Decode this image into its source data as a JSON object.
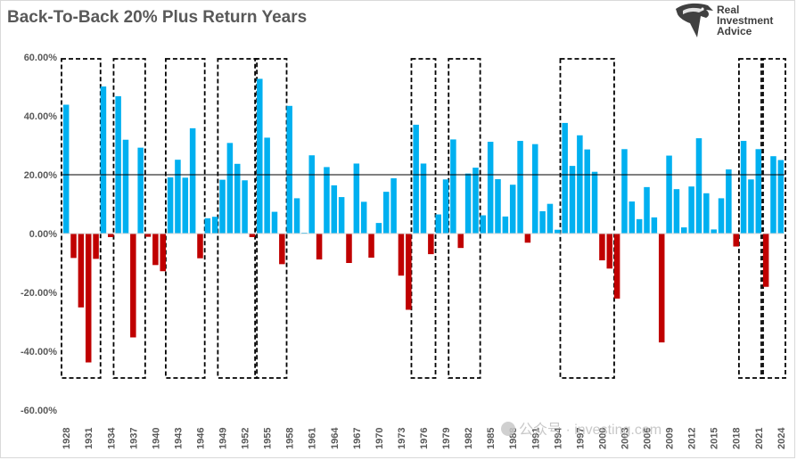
{
  "title": "Back-To-Back 20% Plus Return Years",
  "logo": {
    "line1": "Real",
    "line2": "Investment",
    "line3": "Advice",
    "icon": "eagle-head-icon"
  },
  "watermark": {
    "text": "公众号 · investing.com",
    "icon": "wechat-icon"
  },
  "colors": {
    "positive": "#00b0f0",
    "negative": "#c00000",
    "reference_line": "#000000",
    "highlight_box": "#000000"
  },
  "chart_data": {
    "type": "bar",
    "title": "Back-To-Back 20% Plus Return Years",
    "xlabel": "",
    "ylabel": "",
    "ylim": [
      -0.6,
      0.6
    ],
    "y_ticks": [
      "-60.00%",
      "-40.00%",
      "-20.00%",
      "0.00%",
      "20.00%",
      "40.00%",
      "60.00%"
    ],
    "y_tick_values": [
      -0.6,
      -0.4,
      -0.2,
      0,
      0.2,
      0.4,
      0.6
    ],
    "reference_line": 0.2,
    "grid": false,
    "legend": "none",
    "categories": [
      1928,
      1929,
      1930,
      1931,
      1932,
      1933,
      1934,
      1935,
      1936,
      1937,
      1938,
      1939,
      1940,
      1941,
      1942,
      1943,
      1944,
      1945,
      1946,
      1947,
      1948,
      1949,
      1950,
      1951,
      1952,
      1953,
      1954,
      1955,
      1956,
      1957,
      1958,
      1959,
      1960,
      1961,
      1962,
      1963,
      1964,
      1965,
      1966,
      1967,
      1968,
      1969,
      1970,
      1971,
      1972,
      1973,
      1974,
      1975,
      1976,
      1977,
      1978,
      1979,
      1980,
      1981,
      1982,
      1983,
      1984,
      1985,
      1986,
      1987,
      1988,
      1989,
      1990,
      1991,
      1992,
      1993,
      1994,
      1995,
      1996,
      1997,
      1998,
      1999,
      2000,
      2001,
      2002,
      2003,
      2004,
      2005,
      2006,
      2007,
      2008,
      2009,
      2010,
      2011,
      2012,
      2013,
      2014,
      2015,
      2016,
      2017,
      2018,
      2019,
      2020,
      2021,
      2022,
      2023,
      2024
    ],
    "x_tick_labels": [
      "1928",
      "1931",
      "1934",
      "1937",
      "1940",
      "1943",
      "1946",
      "1949",
      "1952",
      "1955",
      "1958",
      "1961",
      "1964",
      "1967",
      "1970",
      "1973",
      "1976",
      "1979",
      "1982",
      "1985",
      "1988",
      "1991",
      "1994",
      "1997",
      "2000",
      "2003",
      "2006",
      "2009",
      "2012",
      "2015",
      "2018",
      "2021",
      "2024"
    ],
    "values": [
      0.438,
      -0.083,
      -0.251,
      -0.438,
      -0.086,
      0.5,
      -0.012,
      0.467,
      0.319,
      -0.353,
      0.292,
      -0.011,
      -0.107,
      -0.128,
      0.191,
      0.251,
      0.19,
      0.358,
      -0.084,
      0.052,
      0.057,
      0.183,
      0.308,
      0.237,
      0.181,
      -0.012,
      0.526,
      0.326,
      0.074,
      -0.104,
      0.434,
      0.12,
      0.003,
      0.266,
      -0.088,
      0.226,
      0.164,
      0.124,
      -0.1,
      0.238,
      0.108,
      -0.082,
      0.036,
      0.142,
      0.188,
      -0.143,
      -0.259,
      0.37,
      0.238,
      -0.07,
      0.065,
      0.184,
      0.32,
      -0.049,
      0.204,
      0.224,
      0.062,
      0.312,
      0.185,
      0.058,
      0.166,
      0.315,
      -0.031,
      0.304,
      0.076,
      0.101,
      0.013,
      0.376,
      0.23,
      0.334,
      0.286,
      0.21,
      -0.091,
      -0.119,
      -0.221,
      0.287,
      0.109,
      0.049,
      0.158,
      0.055,
      -0.37,
      0.265,
      0.151,
      0.021,
      0.16,
      0.324,
      0.137,
      0.014,
      0.12,
      0.218,
      -0.044,
      0.315,
      0.184,
      0.287,
      -0.181,
      0.263,
      0.25
    ],
    "highlight_periods": [
      [
        1928,
        1932
      ],
      [
        1935,
        1938
      ],
      [
        1942,
        1946
      ],
      [
        1949,
        1953
      ],
      [
        1954,
        1957
      ],
      [
        1975,
        1977
      ],
      [
        1980,
        1983
      ],
      [
        1995,
        2001
      ],
      [
        2019,
        2021
      ],
      [
        2022,
        2024
      ]
    ]
  }
}
